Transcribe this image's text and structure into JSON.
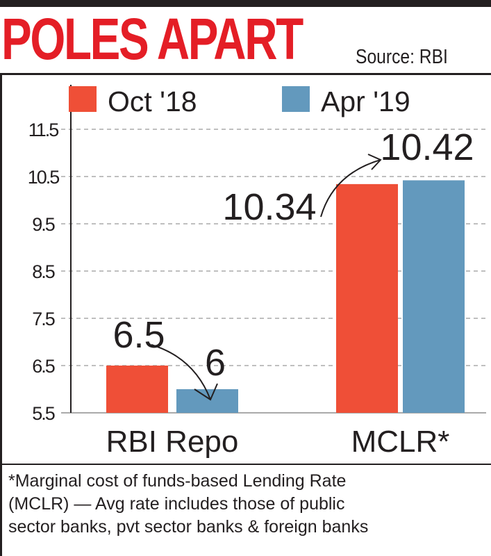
{
  "title": "POLES APART",
  "source": "Source: RBI",
  "footnote": [
    "*Marginal cost of funds-based Lending Rate",
    "(MCLR) — Avg rate includes those of public",
    "sector banks, pvt sector banks & foreign banks"
  ],
  "chart_data": {
    "type": "bar",
    "categories": [
      "RBI Repo",
      "MCLR*"
    ],
    "series": [
      {
        "name": "Oct '18",
        "values": [
          6.5,
          10.34
        ],
        "labels": [
          "6.5",
          "10.34"
        ],
        "color": "#ef4f37"
      },
      {
        "name": "Apr '19",
        "values": [
          6,
          10.42
        ],
        "labels": [
          "6",
          "10.42"
        ],
        "color": "#6399bd"
      }
    ],
    "yticks": [
      "11.5",
      "10.5",
      "9.5",
      "8.5",
      "7.5",
      "6.5",
      "5.5"
    ],
    "ylim": [
      5.5,
      11.5
    ],
    "grid": true,
    "legend": "top"
  }
}
